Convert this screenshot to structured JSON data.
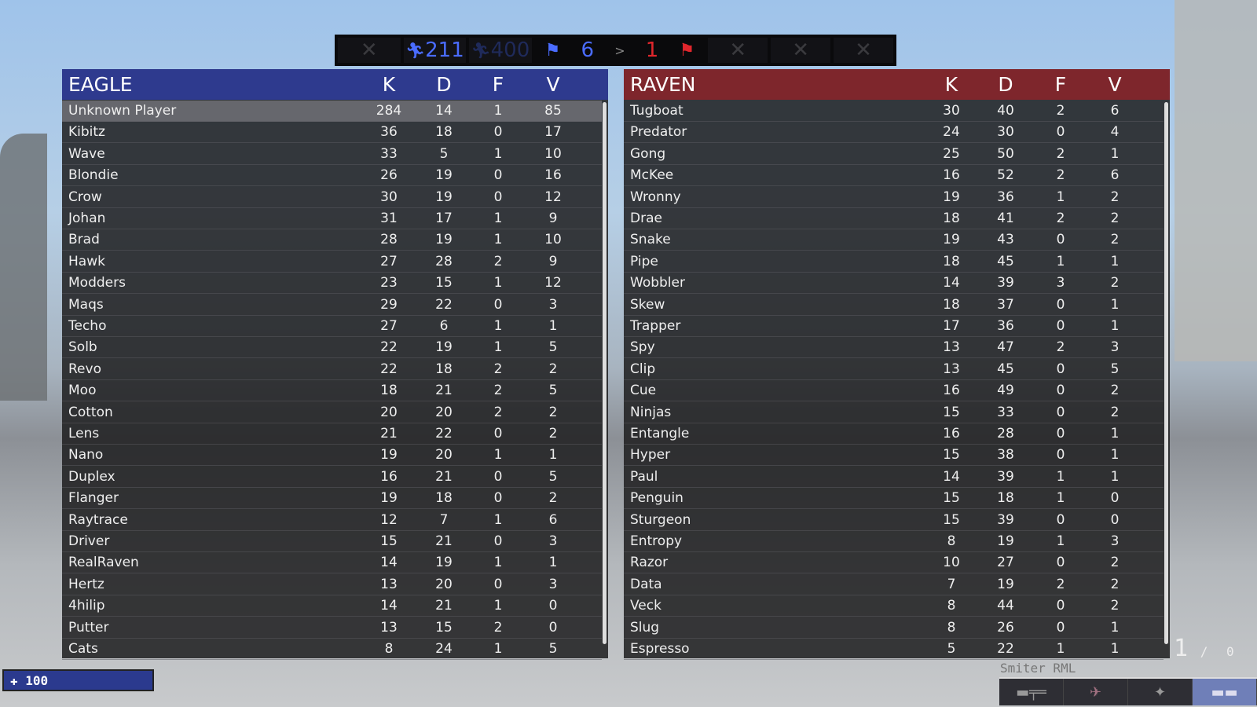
{
  "topbar": {
    "eagle_tickets": "211",
    "max_tickets": "400",
    "eagle_flags": "6",
    "comparison": ">",
    "raven_flags": "1",
    "empty_slot": "✕"
  },
  "colors": {
    "eagle": "#2e3a8e",
    "raven": "#7e262c",
    "eagle_text": "#4a6cff",
    "raven_text": "#e0262c"
  },
  "eagle": {
    "name": "EAGLE",
    "cols": [
      "K",
      "D",
      "F",
      "V"
    ],
    "players": [
      [
        "Unknown Player",
        "284",
        "14",
        "1",
        "85"
      ],
      [
        "Kibitz",
        "36",
        "18",
        "0",
        "17"
      ],
      [
        "Wave",
        "33",
        "5",
        "1",
        "10"
      ],
      [
        "Blondie",
        "26",
        "19",
        "0",
        "16"
      ],
      [
        "Crow",
        "30",
        "19",
        "0",
        "12"
      ],
      [
        "Johan",
        "31",
        "17",
        "1",
        "9"
      ],
      [
        "Brad",
        "28",
        "19",
        "1",
        "10"
      ],
      [
        "Hawk",
        "27",
        "28",
        "2",
        "9"
      ],
      [
        "Modders",
        "23",
        "15",
        "1",
        "12"
      ],
      [
        "Maqs",
        "29",
        "22",
        "0",
        "3"
      ],
      [
        "Techo",
        "27",
        "6",
        "1",
        "1"
      ],
      [
        "Solb",
        "22",
        "19",
        "1",
        "5"
      ],
      [
        "Revo",
        "22",
        "18",
        "2",
        "2"
      ],
      [
        "Moo",
        "18",
        "21",
        "2",
        "5"
      ],
      [
        "Cotton",
        "20",
        "20",
        "2",
        "2"
      ],
      [
        "Lens",
        "21",
        "22",
        "0",
        "2"
      ],
      [
        "Nano",
        "19",
        "20",
        "1",
        "1"
      ],
      [
        "Duplex",
        "16",
        "21",
        "0",
        "5"
      ],
      [
        "Flanger",
        "19",
        "18",
        "0",
        "2"
      ],
      [
        "Raytrace",
        "12",
        "7",
        "1",
        "6"
      ],
      [
        "Driver",
        "15",
        "21",
        "0",
        "3"
      ],
      [
        "RealRaven",
        "14",
        "19",
        "1",
        "1"
      ],
      [
        "Hertz",
        "13",
        "20",
        "0",
        "3"
      ],
      [
        "4hilip",
        "14",
        "21",
        "1",
        "0"
      ],
      [
        "Putter",
        "13",
        "15",
        "2",
        "0"
      ],
      [
        "Cats",
        "8",
        "24",
        "1",
        "5"
      ]
    ]
  },
  "raven": {
    "name": "RAVEN",
    "cols": [
      "K",
      "D",
      "F",
      "V"
    ],
    "players": [
      [
        "Tugboat",
        "30",
        "40",
        "2",
        "6"
      ],
      [
        "Predator",
        "24",
        "30",
        "0",
        "4"
      ],
      [
        "Gong",
        "25",
        "50",
        "2",
        "1"
      ],
      [
        "McKee",
        "16",
        "52",
        "2",
        "6"
      ],
      [
        "Wronny",
        "19",
        "36",
        "1",
        "2"
      ],
      [
        "Drae",
        "18",
        "41",
        "2",
        "2"
      ],
      [
        "Snake",
        "19",
        "43",
        "0",
        "2"
      ],
      [
        "Pipe",
        "18",
        "45",
        "1",
        "1"
      ],
      [
        "Wobbler",
        "14",
        "39",
        "3",
        "2"
      ],
      [
        "Skew",
        "18",
        "37",
        "0",
        "1"
      ],
      [
        "Trapper",
        "17",
        "36",
        "0",
        "1"
      ],
      [
        "Spy",
        "13",
        "47",
        "2",
        "3"
      ],
      [
        "Clip",
        "13",
        "45",
        "0",
        "5"
      ],
      [
        "Cue",
        "16",
        "49",
        "0",
        "2"
      ],
      [
        "Ninjas",
        "15",
        "33",
        "0",
        "2"
      ],
      [
        "Entangle",
        "16",
        "28",
        "0",
        "1"
      ],
      [
        "Hyper",
        "15",
        "38",
        "0",
        "1"
      ],
      [
        "Paul",
        "14",
        "39",
        "1",
        "1"
      ],
      [
        "Penguin",
        "15",
        "18",
        "1",
        "0"
      ],
      [
        "Sturgeon",
        "15",
        "39",
        "0",
        "0"
      ],
      [
        "Entropy",
        "8",
        "19",
        "1",
        "3"
      ],
      [
        "Razor",
        "10",
        "27",
        "0",
        "2"
      ],
      [
        "Data",
        "7",
        "19",
        "2",
        "2"
      ],
      [
        "Veck",
        "8",
        "44",
        "0",
        "2"
      ],
      [
        "Slug",
        "8",
        "26",
        "0",
        "1"
      ],
      [
        "Espresso",
        "5",
        "22",
        "1",
        "1"
      ]
    ]
  },
  "hud": {
    "health": "✚ 100",
    "ammo_loaded": "1",
    "ammo_sep": "/",
    "ammo_reserve": "0",
    "weapon_name": "Smiter RML",
    "weapons": [
      "rifle-icon",
      "wings-icon",
      "plane-icon",
      "launcher-icon"
    ]
  }
}
